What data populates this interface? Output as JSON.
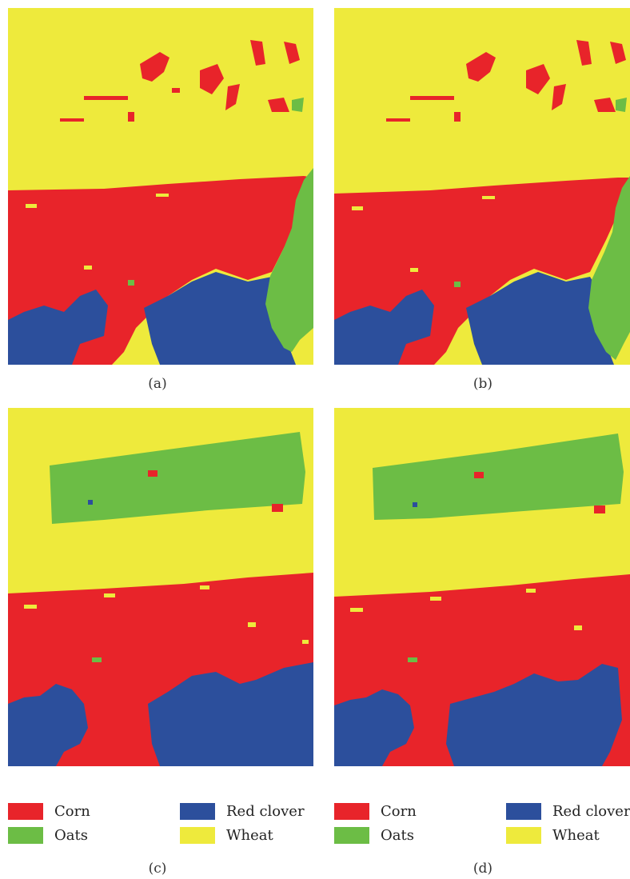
{
  "colors": {
    "corn": "#e8242a",
    "oats": "#6cbd45",
    "red_clover": "#2c4f9c",
    "wheat": "#eeea3c"
  },
  "panels": [
    {
      "label": "(a)"
    },
    {
      "label": "(b)"
    },
    {
      "label": "(c)"
    },
    {
      "label": "(d)"
    }
  ],
  "legend": {
    "corn": "Corn",
    "oats": "Oats",
    "red_clover": "Red clover",
    "wheat": "Wheat"
  }
}
